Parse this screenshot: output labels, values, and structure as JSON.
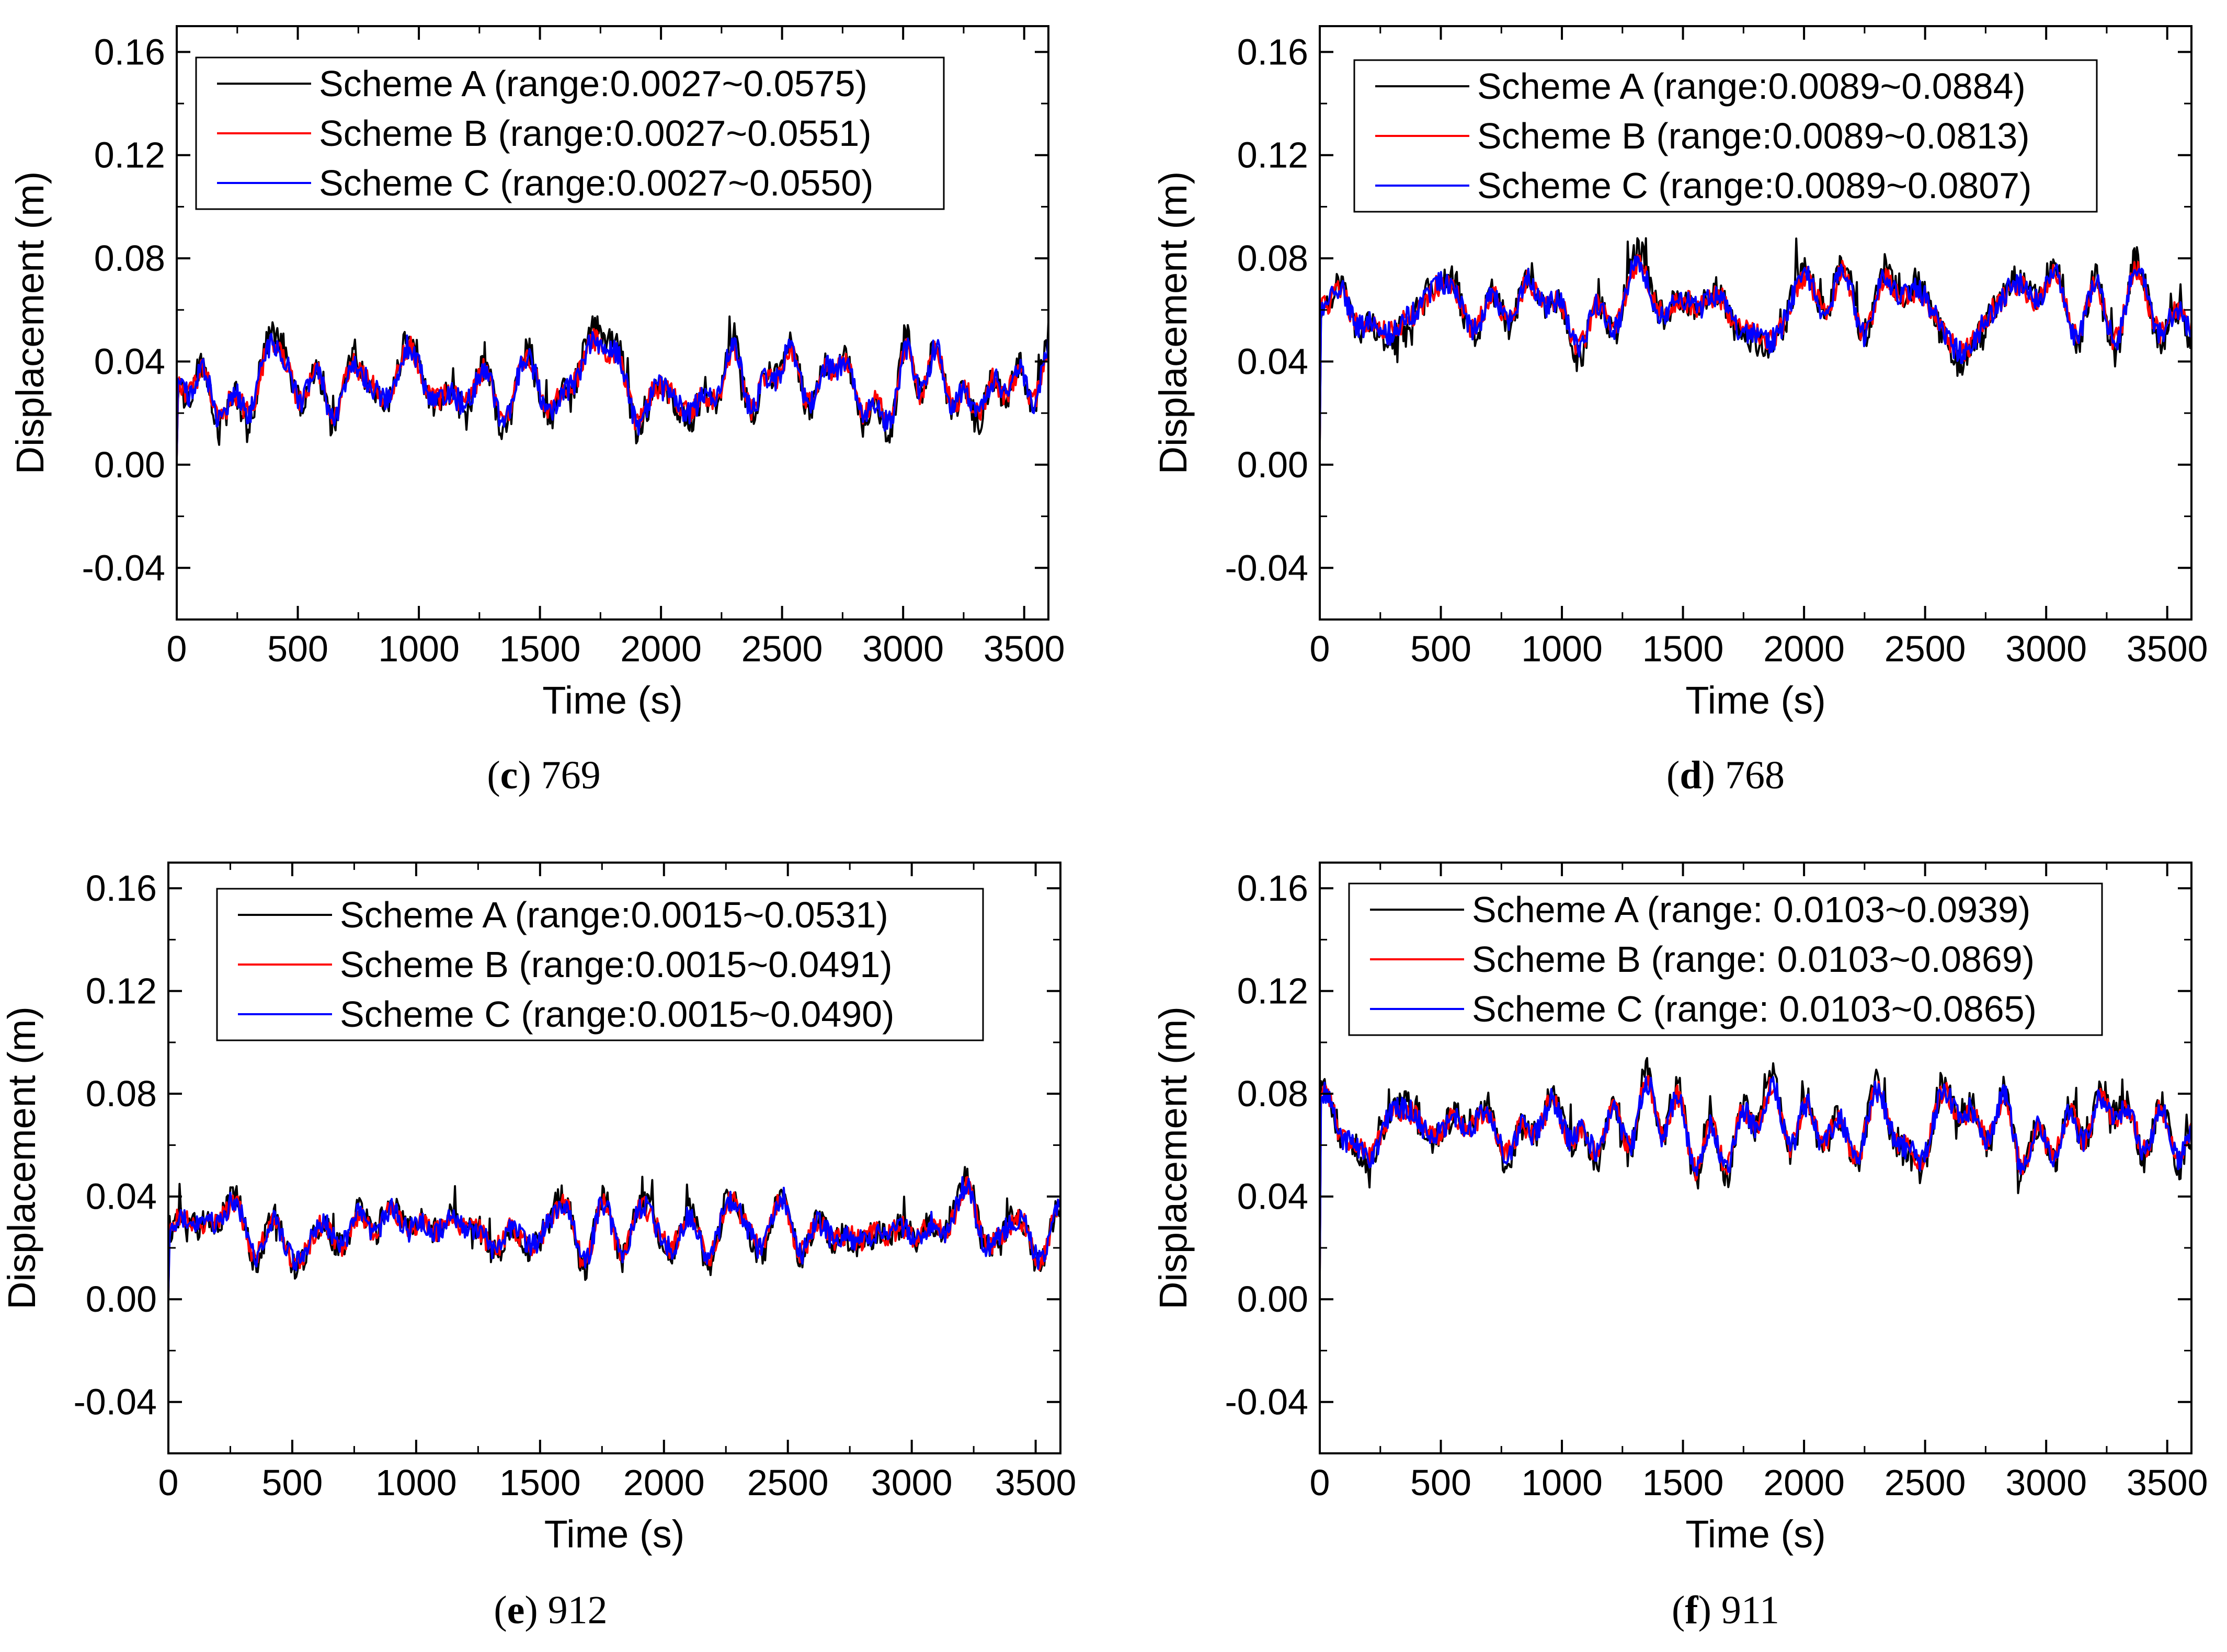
{
  "colors": {
    "scheme_a": "#000000",
    "scheme_b": "#ff0000",
    "scheme_c": "#0000ff",
    "axis": "#000000",
    "background": "#ffffff"
  },
  "chart_data": [
    {
      "id": "c",
      "type": "line",
      "caption_letter": "c",
      "caption_text": " 769",
      "xlabel": "Time (s)",
      "ylabel": "Displacement (m)",
      "xlim": [
        0,
        3600
      ],
      "ylim": [
        -0.06,
        0.17
      ],
      "xticks": [
        0,
        500,
        1000,
        1500,
        2000,
        2500,
        3000,
        3500
      ],
      "yticks": [
        -0.04,
        0.0,
        0.04,
        0.08,
        0.12,
        0.16
      ],
      "ytick_labels": [
        "-0.04",
        "0.00",
        "0.04",
        "0.08",
        "0.12",
        "0.16"
      ],
      "legend_position": "top-left",
      "series": [
        {
          "name": "Scheme A (range:0.0027~0.0575)",
          "color": "#000000",
          "min": 0.0027,
          "max": 0.0575,
          "mean": 0.031,
          "amp": 0.0105
        },
        {
          "name": "Scheme B (range:0.0027~0.0551)",
          "color": "#ff0000",
          "min": 0.0027,
          "max": 0.0551,
          "mean": 0.031,
          "amp": 0.0082
        },
        {
          "name": "Scheme C (range:0.0027~0.0550)",
          "color": "#0000ff",
          "min": 0.0027,
          "max": 0.055,
          "mean": 0.031,
          "amp": 0.0085
        }
      ]
    },
    {
      "id": "d",
      "type": "line",
      "caption_letter": "d",
      "caption_text": " 768",
      "xlabel": "Time (s)",
      "ylabel": "Displacement (m)",
      "xlim": [
        0,
        3600
      ],
      "ylim": [
        -0.06,
        0.17
      ],
      "xticks": [
        0,
        500,
        1000,
        1500,
        2000,
        2500,
        3000,
        3500
      ],
      "yticks": [
        -0.04,
        0.0,
        0.04,
        0.08,
        0.12,
        0.16
      ],
      "ytick_labels": [
        "-0.04",
        "0.00",
        "0.04",
        "0.08",
        "0.12",
        "0.16"
      ],
      "legend_position": "top-left",
      "series": [
        {
          "name": "Scheme A (range:0.0089~0.0884)",
          "color": "#000000",
          "min": 0.0089,
          "max": 0.0884,
          "mean": 0.061,
          "amp": 0.0105
        },
        {
          "name": "Scheme B (range:0.0089~0.0813)",
          "color": "#ff0000",
          "min": 0.0089,
          "max": 0.0813,
          "mean": 0.061,
          "amp": 0.0082
        },
        {
          "name": "Scheme C (range:0.0089~0.0807)",
          "color": "#0000ff",
          "min": 0.0089,
          "max": 0.0807,
          "mean": 0.061,
          "amp": 0.0085
        }
      ]
    },
    {
      "id": "e",
      "type": "line",
      "caption_letter": "e",
      "caption_text": " 912",
      "xlabel": "Time (s)",
      "ylabel": "Displacement (m)",
      "xlim": [
        0,
        3600
      ],
      "ylim": [
        -0.06,
        0.17
      ],
      "xticks": [
        0,
        500,
        1000,
        1500,
        2000,
        2500,
        3000,
        3500
      ],
      "yticks": [
        -0.04,
        0.0,
        0.04,
        0.08,
        0.12,
        0.16
      ],
      "ytick_labels": [
        "-0.04",
        "0.00",
        "0.04",
        "0.08",
        "0.12",
        "0.16"
      ],
      "legend_position": "top-right",
      "series": [
        {
          "name": "Scheme A (range:0.0015~0.0531)",
          "color": "#000000",
          "min": 0.0015,
          "max": 0.0531,
          "mean": 0.027,
          "amp": 0.01
        },
        {
          "name": "Scheme B (range:0.0015~0.0491)",
          "color": "#ff0000",
          "min": 0.0015,
          "max": 0.0491,
          "mean": 0.027,
          "amp": 0.008
        },
        {
          "name": "Scheme C (range:0.0015~0.0490)",
          "color": "#0000ff",
          "min": 0.0015,
          "max": 0.049,
          "mean": 0.027,
          "amp": 0.0082
        }
      ]
    },
    {
      "id": "f",
      "type": "line",
      "caption_letter": "f",
      "caption_text": " 911",
      "xlabel": "Time (s)",
      "ylabel": "Displacement (m)",
      "xlim": [
        0,
        3600
      ],
      "ylim": [
        -0.06,
        0.17
      ],
      "xticks": [
        0,
        500,
        1000,
        1500,
        2000,
        2500,
        3000,
        3500
      ],
      "yticks": [
        -0.04,
        0.0,
        0.04,
        0.08,
        0.12,
        0.16
      ],
      "ytick_labels": [
        "-0.04",
        "0.00",
        "0.04",
        "0.08",
        "0.12",
        "0.16"
      ],
      "legend_position": "top-left",
      "series": [
        {
          "name": "Scheme A (range: 0.0103~0.0939)",
          "color": "#000000",
          "min": 0.0103,
          "max": 0.0939,
          "mean": 0.067,
          "amp": 0.0105
        },
        {
          "name": "Scheme B (range: 0.0103~0.0869)",
          "color": "#ff0000",
          "min": 0.0103,
          "max": 0.0869,
          "mean": 0.067,
          "amp": 0.0082
        },
        {
          "name": "Scheme C (range: 0.0103~0.0865)",
          "color": "#0000ff",
          "min": 0.0103,
          "max": 0.0865,
          "mean": 0.067,
          "amp": 0.0085
        }
      ]
    }
  ]
}
